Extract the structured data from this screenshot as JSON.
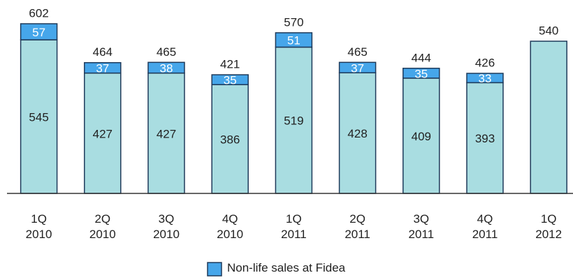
{
  "chart_data": {
    "type": "stacked_bar",
    "categories": [
      "1Q\n2010",
      "2Q\n2010",
      "3Q\n2010",
      "4Q\n2010",
      "1Q\n2011",
      "2Q\n2011",
      "3Q\n2011",
      "4Q\n2011",
      "1Q\n2012"
    ],
    "series": [
      {
        "color": "#a9dde1",
        "values": [
          545,
          427,
          427,
          386,
          519,
          428,
          409,
          393,
          540
        ],
        "value_labels": [
          "545",
          "427",
          "427",
          "386",
          "519",
          "428",
          "409",
          "393",
          null
        ]
      },
      {
        "name": "Non-life sales at Fidea",
        "color": "#46a6ea",
        "values": [
          57,
          37,
          38,
          35,
          51,
          37,
          35,
          33,
          null
        ]
      }
    ],
    "totals": [
      602,
      464,
      465,
      421,
      570,
      465,
      444,
      426,
      540
    ],
    "legend": "bottom"
  }
}
